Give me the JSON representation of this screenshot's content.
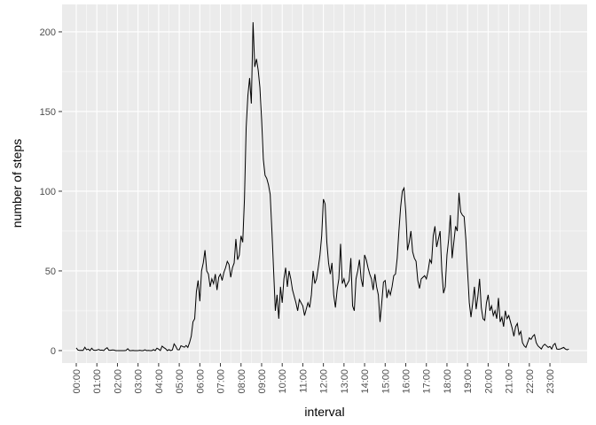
{
  "chart_data": {
    "type": "line",
    "x_label": "interval",
    "y_label": "number of steps",
    "categories": [
      "00:00",
      null,
      null,
      null,
      null,
      null,
      null,
      null,
      null,
      null,
      null,
      null,
      "01:00",
      null,
      null,
      null,
      null,
      null,
      null,
      null,
      null,
      null,
      null,
      null,
      "02:00",
      null,
      null,
      null,
      null,
      null,
      null,
      null,
      null,
      null,
      null,
      null,
      "03:00",
      null,
      null,
      null,
      null,
      null,
      null,
      null,
      null,
      null,
      null,
      null,
      "04:00",
      null,
      null,
      null,
      null,
      null,
      null,
      null,
      null,
      null,
      null,
      null,
      "05:00",
      null,
      null,
      null,
      null,
      null,
      null,
      null,
      null,
      null,
      null,
      null,
      "06:00",
      null,
      null,
      null,
      null,
      null,
      null,
      null,
      null,
      null,
      null,
      null,
      "07:00",
      null,
      null,
      null,
      null,
      null,
      null,
      null,
      null,
      null,
      null,
      null,
      "08:00",
      null,
      null,
      null,
      null,
      null,
      null,
      null,
      null,
      null,
      null,
      null,
      "09:00",
      null,
      null,
      null,
      null,
      null,
      null,
      null,
      null,
      null,
      null,
      null,
      "10:00",
      null,
      null,
      null,
      null,
      null,
      null,
      null,
      null,
      null,
      null,
      null,
      "11:00",
      null,
      null,
      null,
      null,
      null,
      null,
      null,
      null,
      null,
      null,
      null,
      "12:00",
      null,
      null,
      null,
      null,
      null,
      null,
      null,
      null,
      null,
      null,
      null,
      "13:00",
      null,
      null,
      null,
      null,
      null,
      null,
      null,
      null,
      null,
      null,
      null,
      "14:00",
      null,
      null,
      null,
      null,
      null,
      null,
      null,
      null,
      null,
      null,
      null,
      "15:00",
      null,
      null,
      null,
      null,
      null,
      null,
      null,
      null,
      null,
      null,
      null,
      "16:00",
      null,
      null,
      null,
      null,
      null,
      null,
      null,
      null,
      null,
      null,
      null,
      "17:00",
      null,
      null,
      null,
      null,
      null,
      null,
      null,
      null,
      null,
      null,
      null,
      "18:00",
      null,
      null,
      null,
      null,
      null,
      null,
      null,
      null,
      null,
      null,
      null,
      "19:00",
      null,
      null,
      null,
      null,
      null,
      null,
      null,
      null,
      null,
      null,
      null,
      "20:00",
      null,
      null,
      null,
      null,
      null,
      null,
      null,
      null,
      null,
      null,
      null,
      "21:00",
      null,
      null,
      null,
      null,
      null,
      null,
      null,
      null,
      null,
      null,
      null,
      "22:00",
      null,
      null,
      null,
      null,
      null,
      null,
      null,
      null,
      null,
      null,
      null,
      "23:00",
      null,
      null,
      null,
      null,
      null,
      null,
      null,
      null,
      null,
      null,
      null
    ],
    "series": [
      {
        "color": "#000000",
        "values": [
          1.7,
          0.3,
          0.1,
          0.2,
          0.1,
          2.1,
          0.5,
          0.9,
          0,
          1.5,
          0.3,
          0.1,
          0.3,
          0.7,
          0.2,
          0.3,
          0,
          1.1,
          1.8,
          0.2,
          0.2,
          0.4,
          0.3,
          0,
          0,
          0,
          0,
          0,
          0,
          0.1,
          1.2,
          0,
          0,
          0.1,
          0,
          0,
          0,
          0.2,
          0,
          0,
          0.5,
          0,
          0.1,
          0,
          0,
          0.6,
          0,
          1.5,
          0.9,
          0,
          2.8,
          1.9,
          1.2,
          0,
          0.6,
          0,
          0.4,
          4.2,
          2.6,
          0.5,
          0.5,
          3,
          2.6,
          2.1,
          3.2,
          2,
          5,
          9,
          18,
          20,
          37,
          44,
          31,
          50,
          55,
          63,
          50,
          48,
          40,
          45,
          42,
          48,
          38,
          46,
          48,
          44,
          49,
          52,
          56,
          54,
          46,
          52,
          55,
          70,
          57,
          60,
          72,
          68,
          95,
          140,
          160,
          171,
          155,
          206,
          178,
          183,
          176,
          165,
          145,
          120,
          110,
          108,
          104,
          98,
          75,
          50,
          25,
          35,
          20,
          40,
          30,
          45,
          52,
          40,
          50,
          45,
          38,
          34,
          30,
          25,
          32,
          30,
          28,
          22,
          26,
          30,
          27,
          35,
          50,
          42,
          45,
          52,
          60,
          72,
          95,
          92,
          68,
          55,
          48,
          55,
          35,
          27,
          38,
          45,
          67,
          42,
          45,
          40,
          42,
          44,
          58,
          28,
          25,
          45,
          50,
          57,
          45,
          40,
          60,
          57,
          52,
          48,
          45,
          38,
          48,
          40,
          35,
          18,
          30,
          43,
          44,
          33,
          38,
          35,
          40,
          47,
          48,
          58,
          75,
          90,
          100,
          102,
          87,
          63,
          68,
          75,
          62,
          58,
          56,
          44,
          39,
          45,
          46,
          47,
          45,
          50,
          57,
          55,
          72,
          78,
          65,
          70,
          75,
          50,
          36,
          40,
          60,
          70,
          85,
          58,
          68,
          78,
          75,
          99,
          87,
          85,
          84,
          70,
          50,
          30,
          21,
          30,
          40,
          26,
          34,
          45,
          27,
          20,
          19,
          30,
          35,
          25,
          28,
          22,
          25,
          20,
          33,
          18,
          21,
          15,
          25,
          20,
          22,
          18,
          14,
          9,
          15,
          17,
          10,
          12,
          5,
          3,
          2,
          5,
          8,
          7,
          9,
          10,
          5,
          3,
          2,
          1,
          3,
          4,
          3,
          2,
          2.6,
          1,
          3.5,
          4.5,
          1,
          0.8,
          1,
          1.5,
          2,
          1,
          0.5,
          1
        ]
      }
    ],
    "ylim": [
      -7.8,
      217.2
    ],
    "yticks": [
      0,
      50,
      100,
      150,
      200
    ],
    "grid": true
  }
}
